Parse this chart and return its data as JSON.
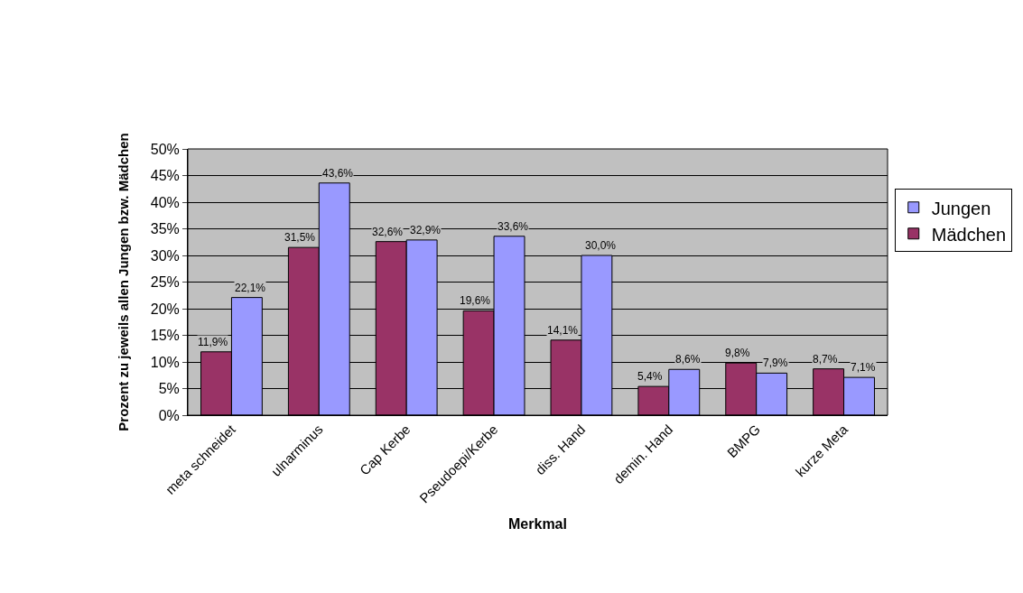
{
  "chart_data": {
    "type": "bar",
    "xlabel": "Merkmal",
    "ylabel": "Prozent zu jeweils allen Jungen bzw. Mädchen",
    "categories": [
      "meta schneidet",
      "ulnarminus",
      "Cap Kerbe",
      "Pseudoepi/Kerbe",
      "diss. Hand",
      "demin. Hand",
      "BMPG",
      "kurze Meta"
    ],
    "series": [
      {
        "name": "Mädchen",
        "color": "#993366",
        "values": [
          11.9,
          31.5,
          32.6,
          19.6,
          14.1,
          5.4,
          9.8,
          8.7
        ],
        "value_labels": [
          "11,9%",
          "31,5%",
          "32,6%",
          "19,6%",
          "14,1%",
          "5,4%",
          "9,8%",
          "8,7%"
        ]
      },
      {
        "name": "Jungen",
        "color": "#9999ff",
        "values": [
          22.1,
          43.6,
          32.9,
          33.6,
          30.0,
          8.6,
          7.9,
          7.1
        ],
        "value_labels": [
          "22,1%",
          "43,6%",
          "32,9%",
          "33,6%",
          "30,0%",
          "8,6%",
          "7,9%",
          "7,1%"
        ]
      }
    ],
    "ylim": [
      0,
      50
    ],
    "yticks": [
      {
        "value": 0,
        "label": "0%"
      },
      {
        "value": 5,
        "label": "5%"
      },
      {
        "value": 10,
        "label": "10%"
      },
      {
        "value": 15,
        "label": "15%"
      },
      {
        "value": 20,
        "label": "20%"
      },
      {
        "value": 25,
        "label": "25%"
      },
      {
        "value": 30,
        "label": "30%"
      },
      {
        "value": 35,
        "label": "35%"
      },
      {
        "value": 40,
        "label": "40%"
      },
      {
        "value": 45,
        "label": "45%"
      },
      {
        "value": 50,
        "label": "50%"
      }
    ],
    "grid": "y",
    "legend": "right"
  }
}
